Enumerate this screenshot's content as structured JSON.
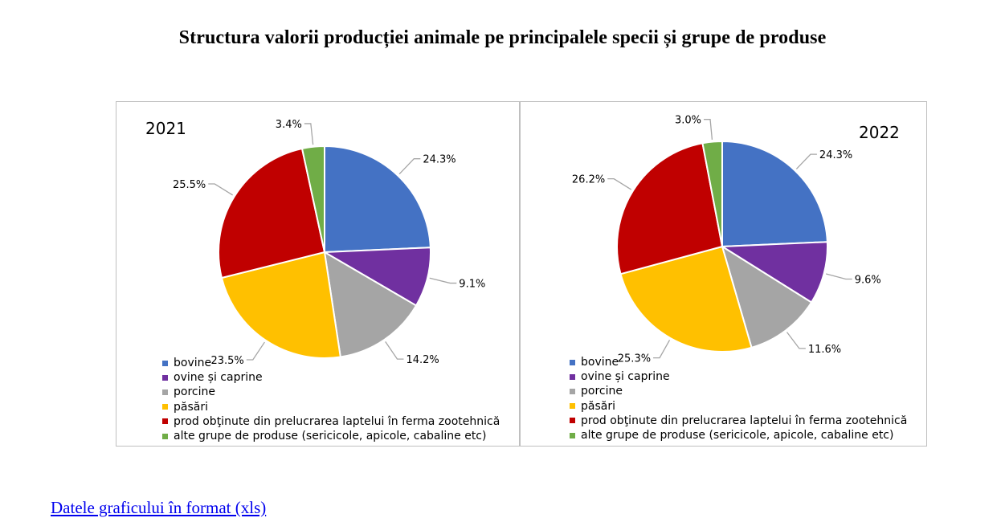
{
  "title": "Structura valorii producției animale pe principalele specii și grupe de produse",
  "link_text": "Datele graficului în format (xls)",
  "categories": [
    "bovine",
    "ovine și caprine",
    "porcine",
    "păsări",
    "prod obţinute din prelucrarea  laptelui în ferma zootehnică",
    "alte grupe de produse (sericicole, apicole, cabaline etc)"
  ],
  "colors": [
    "#4472C4",
    "#7030A0",
    "#A5A5A5",
    "#FFC000",
    "#C00000",
    "#70AD47"
  ],
  "chart_data": [
    {
      "type": "pie",
      "title": "2021",
      "categories": [
        "bovine",
        "ovine și caprine",
        "porcine",
        "păsări",
        "prod obţinute din prelucrarea  laptelui în ferma zootehnică",
        "alte grupe de produse (sericicole, apicole, cabaline etc)"
      ],
      "values": [
        24.3,
        9.1,
        14.2,
        23.5,
        25.5,
        3.4
      ],
      "labels": [
        "24.3%",
        "9.1%",
        "14.2%",
        "23.5%",
        "25.5%",
        "3.4%"
      ],
      "legend": "bottom-left"
    },
    {
      "type": "pie",
      "title": "2022",
      "categories": [
        "bovine",
        "ovine și caprine",
        "porcine",
        "păsări",
        "prod obţinute din prelucrarea  laptelui în ferma zootehnică",
        "alte grupe de produse (sericicole, apicole, cabaline etc)"
      ],
      "values": [
        24.3,
        9.6,
        11.6,
        25.3,
        26.2,
        3.0
      ],
      "labels": [
        "24.3%",
        "9.6%",
        "11.6%",
        "25.3%",
        "26.2%",
        "3.0%"
      ],
      "legend": "bottom-left"
    }
  ]
}
